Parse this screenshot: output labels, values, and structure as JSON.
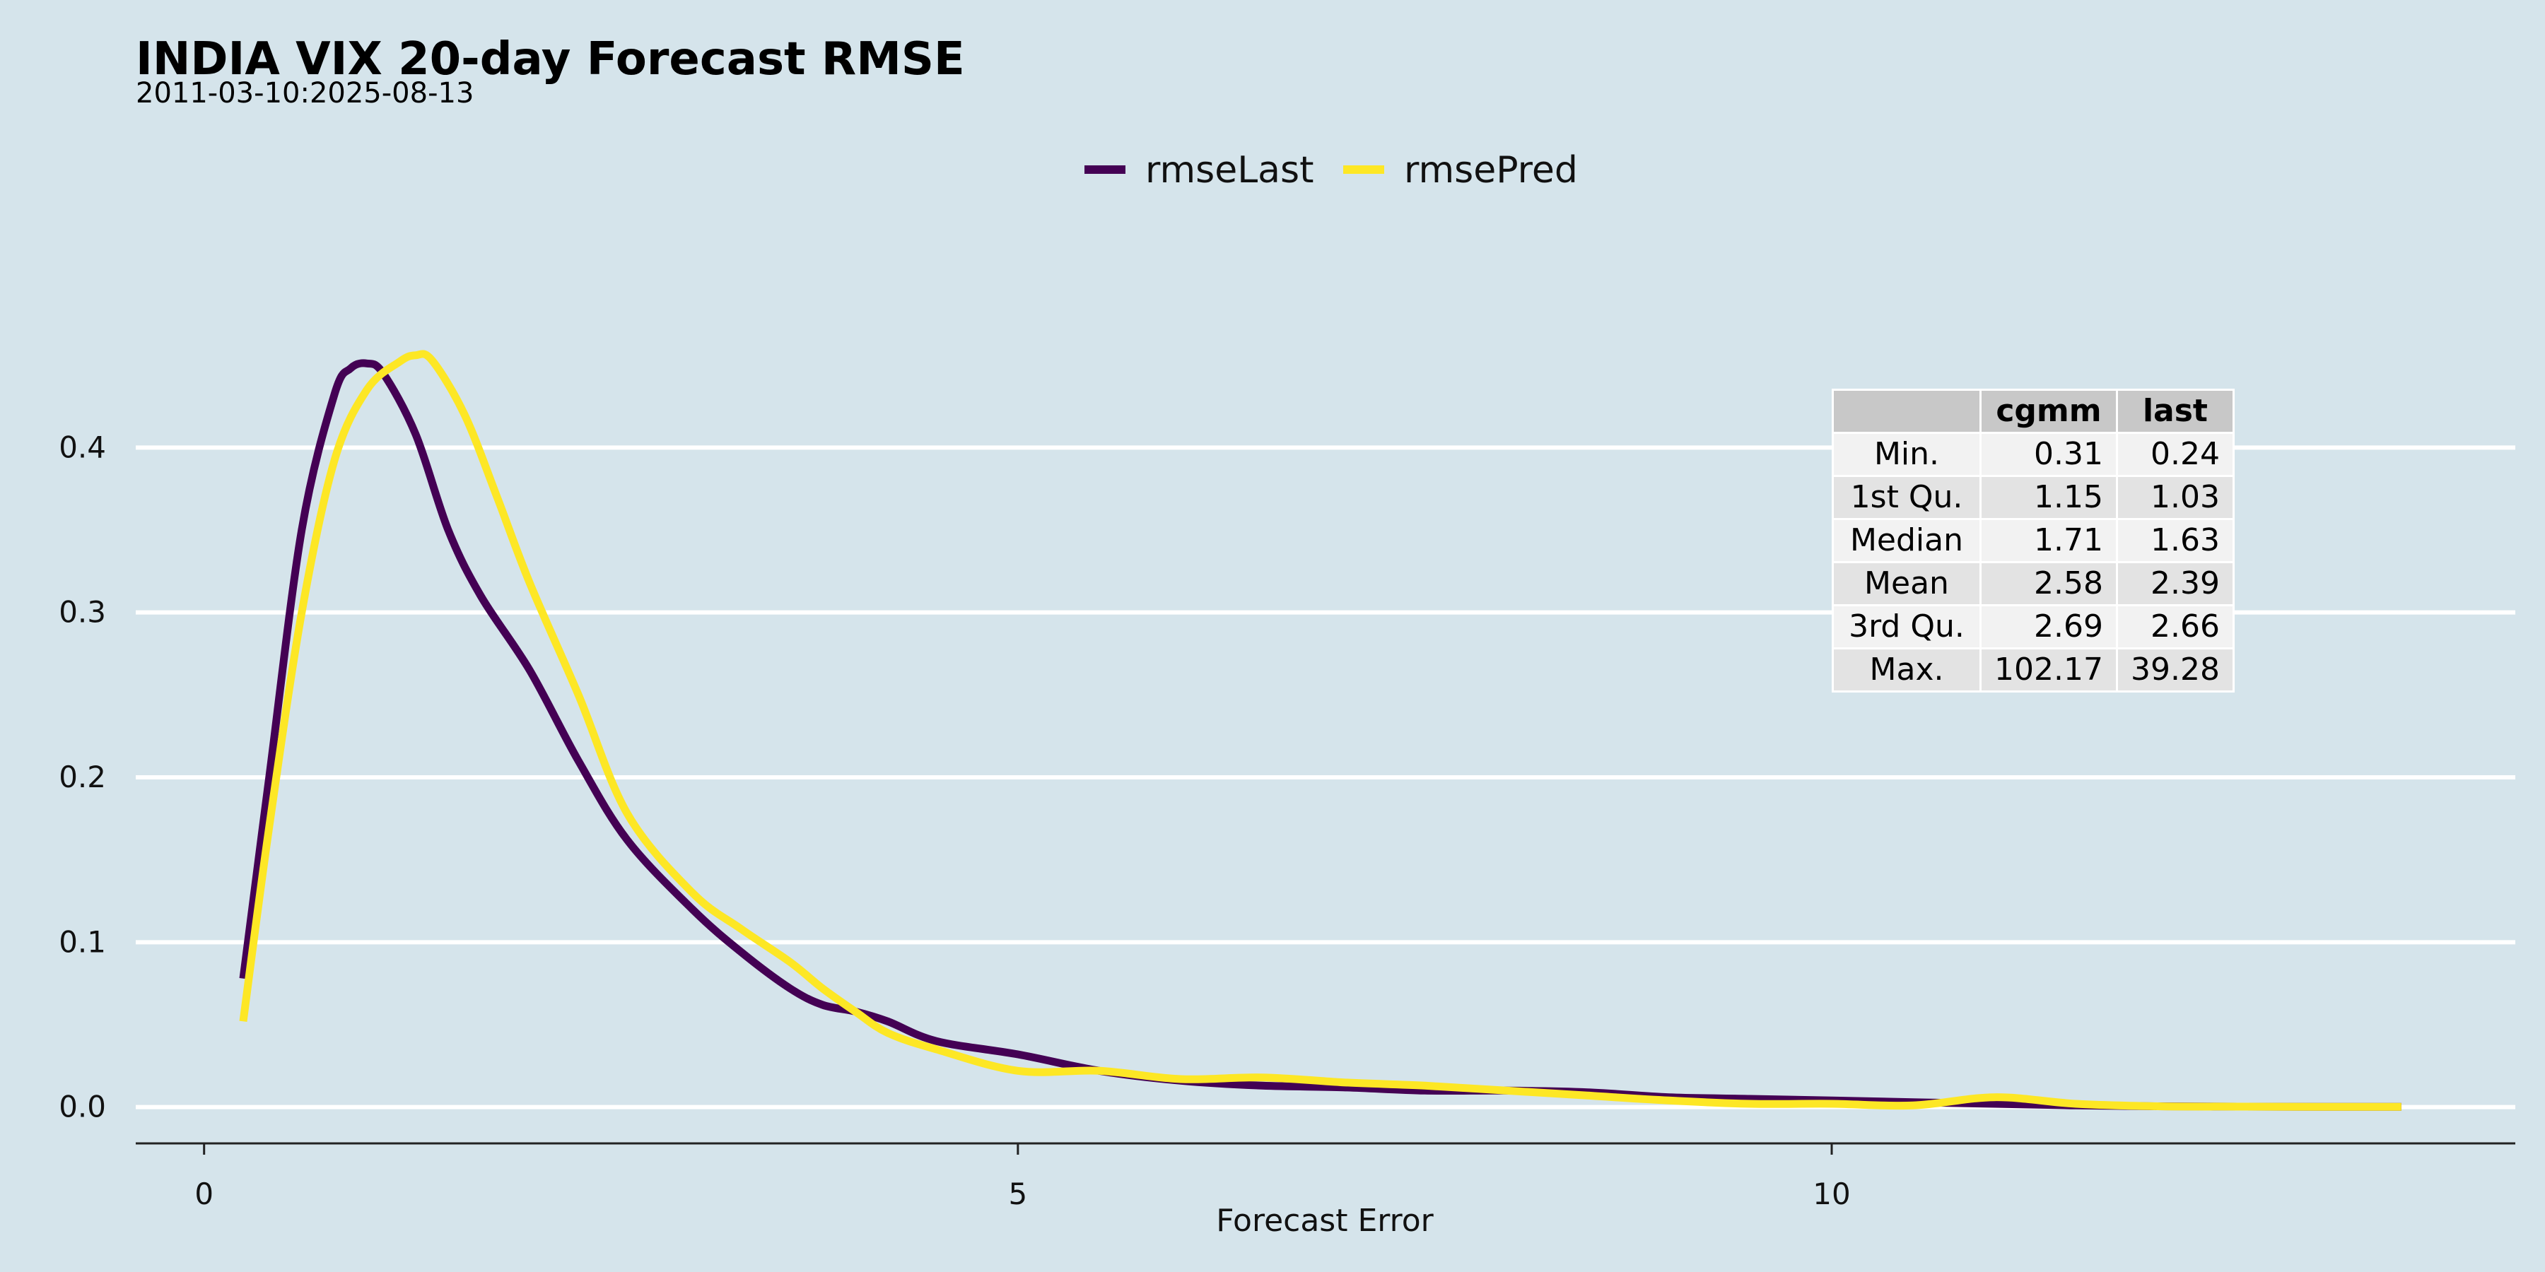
{
  "chart_data": {
    "type": "line",
    "title": "INDIA VIX 20-day Forecast RMSE",
    "subtitle": "2011-03-10:2025-08-13",
    "xlabel": "Forecast Error",
    "ylabel": "",
    "xlim": [
      -0.42,
      14.2
    ],
    "ylim": [
      -0.022,
      0.5
    ],
    "x_ticks": [
      0,
      5,
      10
    ],
    "y_ticks": [
      0.0,
      0.1,
      0.2,
      0.3,
      0.4
    ],
    "y_tick_labels": [
      "0.0",
      "0.1",
      "0.2",
      "0.3",
      "0.4"
    ],
    "grid": "horizontal",
    "legend_position": "top",
    "series": [
      {
        "name": "rmseLast",
        "color": "#440154",
        "x": [
          0.24,
          0.4,
          0.6,
          0.8,
          0.9,
          1.0,
          1.1,
          1.3,
          1.5,
          1.7,
          2.0,
          2.3,
          2.6,
          3.0,
          3.3,
          3.6,
          3.8,
          4.0,
          4.2,
          4.5,
          5.0,
          5.5,
          6.0,
          6.5,
          7.0,
          7.5,
          8.0,
          8.5,
          9.0,
          9.5,
          10.0,
          10.5,
          11.0,
          11.5,
          12.0,
          12.5,
          13.0,
          13.5
        ],
        "y": [
          0.078,
          0.2,
          0.35,
          0.432,
          0.448,
          0.451,
          0.445,
          0.408,
          0.35,
          0.31,
          0.265,
          0.21,
          0.162,
          0.12,
          0.094,
          0.072,
          0.062,
          0.058,
          0.052,
          0.04,
          0.032,
          0.022,
          0.016,
          0.013,
          0.012,
          0.01,
          0.01,
          0.009,
          0.006,
          0.005,
          0.004,
          0.003,
          0.002,
          0.001,
          0.0005,
          0.0003,
          0.0002,
          0.0002
        ]
      },
      {
        "name": "rmsePred",
        "color": "#fde725",
        "x": [
          0.24,
          0.4,
          0.6,
          0.8,
          1.0,
          1.2,
          1.3,
          1.4,
          1.6,
          1.8,
          2.0,
          2.3,
          2.6,
          3.0,
          3.3,
          3.6,
          3.8,
          4.0,
          4.2,
          4.5,
          5.0,
          5.5,
          6.0,
          6.5,
          7.0,
          7.5,
          8.0,
          8.5,
          9.0,
          9.5,
          10.0,
          10.5,
          11.0,
          11.5,
          12.0,
          12.5,
          13.0,
          13.5
        ],
        "y": [
          0.052,
          0.17,
          0.3,
          0.392,
          0.435,
          0.452,
          0.456,
          0.453,
          0.42,
          0.37,
          0.318,
          0.25,
          0.178,
          0.13,
          0.108,
          0.088,
          0.072,
          0.058,
          0.045,
          0.035,
          0.022,
          0.022,
          0.017,
          0.018,
          0.015,
          0.013,
          0.01,
          0.007,
          0.004,
          0.002,
          0.002,
          0.001,
          0.006,
          0.002,
          0.0005,
          0.0003,
          0.0002,
          0.0002
        ]
      }
    ],
    "table": {
      "columns": [
        "",
        "cgmm",
        "last"
      ],
      "rows": [
        [
          "Min.",
          "0.31",
          "0.24"
        ],
        [
          "1st Qu.",
          "1.15",
          "1.03"
        ],
        [
          "Median",
          "1.71",
          "1.63"
        ],
        [
          "Mean",
          "2.58",
          "2.39"
        ],
        [
          "3rd Qu.",
          "2.69",
          "2.66"
        ],
        [
          "Max.",
          "102.17",
          "39.28"
        ]
      ]
    }
  }
}
